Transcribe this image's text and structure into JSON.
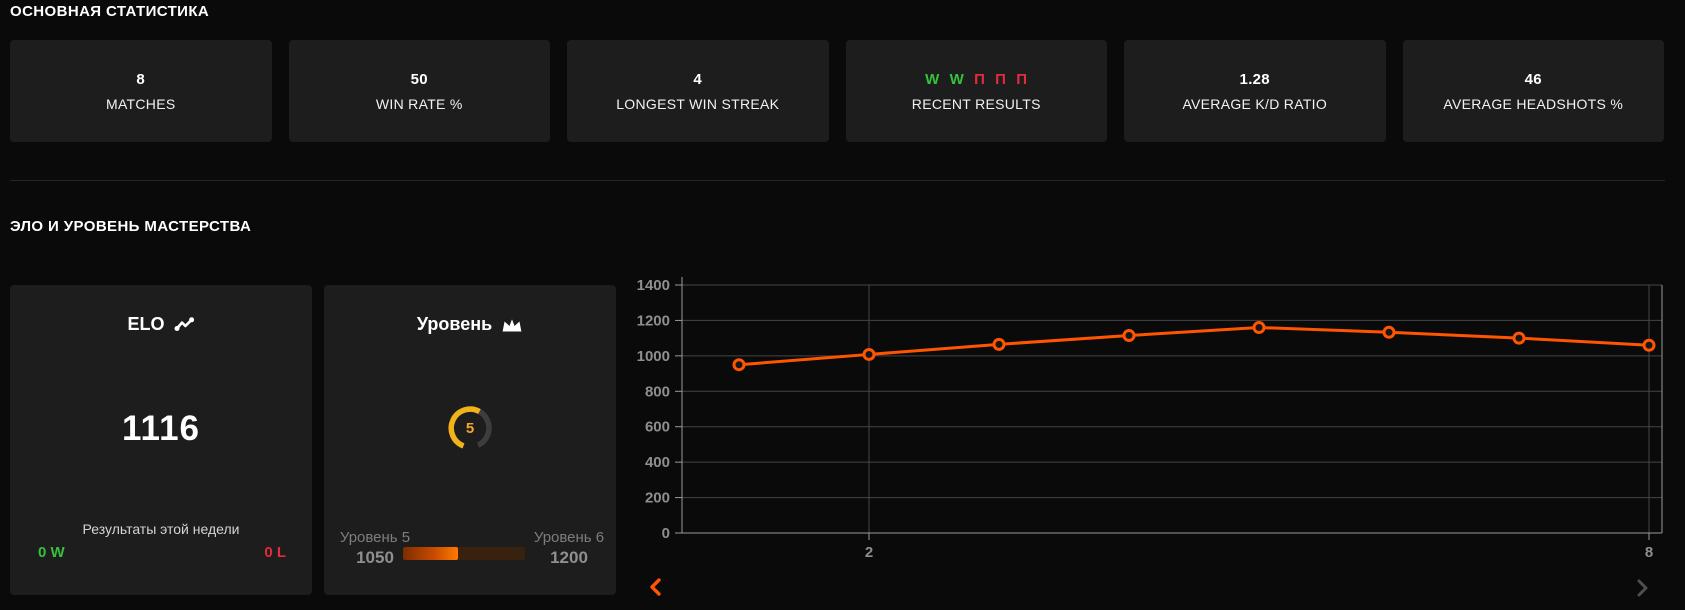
{
  "main_stats": {
    "title": "ОСНОВНАЯ СТАТИСТИКА",
    "cards": [
      {
        "value": "8",
        "label": "MATCHES"
      },
      {
        "value": "50",
        "label": "WIN RATE %"
      },
      {
        "value": "4",
        "label": "LONGEST WIN STREAK"
      },
      {
        "label": "RECENT RESULTS",
        "results": [
          {
            "letter": "W",
            "outcome": "win"
          },
          {
            "letter": "W",
            "outcome": "win"
          },
          {
            "letter": "П",
            "outcome": "loss"
          },
          {
            "letter": "П",
            "outcome": "loss"
          },
          {
            "letter": "П",
            "outcome": "loss"
          }
        ]
      },
      {
        "value": "1.28",
        "label": "AVERAGE K/D RATIO"
      },
      {
        "value": "46",
        "label": "AVERAGE HEADSHOTS %"
      }
    ]
  },
  "elo_section": {
    "title": "ЭЛО И УРОВЕНЬ МАСТЕРСТВА",
    "elo_card": {
      "title": "ELO",
      "value": "1116",
      "weekly_label": "Результаты этой недели",
      "wins": "0 W",
      "losses": "0 L"
    },
    "level_card": {
      "title": "Уровень",
      "level": "5",
      "current_label": "Уровень 5",
      "current_value": "1050",
      "next_label": "Уровень 6",
      "next_value": "1200",
      "progress_pct": 45
    }
  },
  "chart_data": {
    "type": "line",
    "title": "",
    "xlabel": "",
    "ylabel": "",
    "x": [
      1,
      2,
      3,
      4,
      5,
      6,
      7,
      8
    ],
    "series": [
      {
        "name": "ELO",
        "values": [
          950,
          1008,
          1065,
          1115,
          1160,
          1133,
          1100,
          1060
        ]
      }
    ],
    "x_ticks_shown": [
      2,
      8
    ],
    "y_ticks": [
      0,
      200,
      400,
      600,
      800,
      1000,
      1200,
      1400
    ],
    "ylim": [
      0,
      1400
    ],
    "grid": true,
    "legend": "none",
    "line_color": "#ff5500",
    "marker_fill": "#161616"
  },
  "colors": {
    "accent_orange": "#ff5500",
    "win_green": "#36c13c",
    "loss_red": "#e22b3d",
    "gauge_gold": "#f0b31a",
    "card_bg": "#1d1d1d"
  }
}
